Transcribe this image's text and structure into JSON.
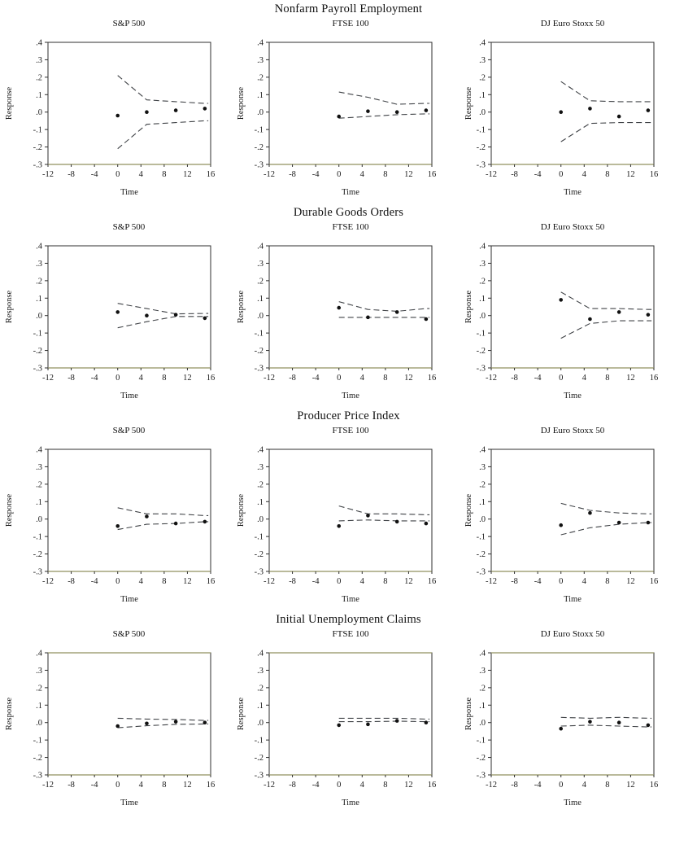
{
  "figure": {
    "background": "#ffffff"
  },
  "axes": {
    "ylabel": "Response",
    "xlabel": "Time",
    "ytick_labels": [
      ".4",
      ".3",
      ".2",
      ".1",
      ".0",
      "-.1",
      "-.2",
      "-.3"
    ],
    "ytick_values": [
      0.4,
      0.3,
      0.2,
      0.1,
      0.0,
      -0.1,
      -0.2,
      -0.3
    ],
    "xtick_labels": [
      "-12",
      "-8",
      "-4",
      "0",
      "4",
      "8",
      "12",
      "16"
    ],
    "xtick_values": [
      -12,
      -8,
      -4,
      0,
      4,
      8,
      12,
      16
    ],
    "xlim": [
      -12,
      16
    ],
    "ylim": [
      -0.3,
      0.4
    ],
    "grid": false
  },
  "colors": {
    "frame": "#2f2f2f",
    "frame_accent": "#90905f",
    "band": "#404347",
    "point": "#111111",
    "text": "#1a1a1a"
  },
  "chart_data": [
    {
      "title": "Nonfarm Payroll Employment",
      "type": "scatter",
      "x": [
        0,
        5,
        10,
        15
      ],
      "panels": [
        {
          "series_title": "S&P 500",
          "points": [
            -0.02,
            0.0,
            0.01,
            0.02
          ],
          "upper_band": [
            0.21,
            0.07,
            0.06,
            0.05
          ],
          "lower_band": [
            -0.21,
            -0.07,
            -0.06,
            -0.05
          ]
        },
        {
          "series_title": "FTSE 100",
          "points": [
            -0.025,
            0.005,
            0.0,
            0.01
          ],
          "upper_band": [
            0.115,
            0.085,
            0.045,
            0.05
          ],
          "lower_band": [
            -0.035,
            -0.025,
            -0.015,
            -0.01
          ]
        },
        {
          "series_title": "DJ Euro Stoxx 50",
          "points": [
            0.0,
            0.02,
            -0.025,
            0.01
          ],
          "upper_band": [
            0.175,
            0.065,
            0.06,
            0.06
          ],
          "lower_band": [
            -0.17,
            -0.065,
            -0.06,
            -0.06
          ]
        }
      ]
    },
    {
      "title": "Durable Goods Orders",
      "type": "scatter",
      "x": [
        0,
        5,
        10,
        15
      ],
      "panels": [
        {
          "series_title": "S&P 500",
          "points": [
            0.02,
            0.0,
            0.005,
            -0.015
          ],
          "upper_band": [
            0.07,
            0.04,
            0.01,
            0.012
          ],
          "lower_band": [
            -0.07,
            -0.035,
            -0.005,
            -0.005
          ]
        },
        {
          "series_title": "FTSE 100",
          "points": [
            0.045,
            -0.01,
            0.02,
            -0.02
          ],
          "upper_band": [
            0.08,
            0.035,
            0.025,
            0.04
          ],
          "lower_band": [
            -0.01,
            -0.01,
            -0.01,
            -0.01
          ]
        },
        {
          "series_title": "DJ Euro Stoxx 50",
          "points": [
            0.09,
            -0.02,
            0.02,
            0.005
          ],
          "upper_band": [
            0.135,
            0.04,
            0.04,
            0.035
          ],
          "lower_band": [
            -0.13,
            -0.045,
            -0.03,
            -0.03
          ]
        }
      ]
    },
    {
      "title": "Producer Price Index",
      "type": "scatter",
      "x": [
        0,
        5,
        10,
        15
      ],
      "panels": [
        {
          "series_title": "S&P 500",
          "points": [
            -0.04,
            0.015,
            -0.025,
            -0.015
          ],
          "upper_band": [
            0.065,
            0.03,
            0.03,
            0.02
          ],
          "lower_band": [
            -0.06,
            -0.03,
            -0.025,
            -0.015
          ]
        },
        {
          "series_title": "FTSE 100",
          "points": [
            -0.04,
            0.02,
            -0.015,
            -0.025
          ],
          "upper_band": [
            0.075,
            0.03,
            0.03,
            0.025
          ],
          "lower_band": [
            -0.01,
            -0.005,
            -0.01,
            -0.01
          ]
        },
        {
          "series_title": "DJ Euro Stoxx 50",
          "points": [
            -0.035,
            0.035,
            -0.02,
            -0.02
          ],
          "upper_band": [
            0.09,
            0.05,
            0.035,
            0.03
          ],
          "lower_band": [
            -0.09,
            -0.05,
            -0.03,
            -0.02
          ]
        }
      ]
    },
    {
      "title": "Initial Unemployment Claims",
      "type": "scatter",
      "x": [
        0,
        5,
        10,
        15
      ],
      "panels": [
        {
          "series_title": "S&P 500",
          "points": [
            -0.02,
            -0.005,
            0.005,
            0.0
          ],
          "upper_band": [
            0.025,
            0.02,
            0.018,
            0.012
          ],
          "lower_band": [
            -0.03,
            -0.018,
            -0.01,
            -0.008
          ]
        },
        {
          "series_title": "FTSE 100",
          "points": [
            -0.015,
            -0.01,
            0.01,
            0.0
          ],
          "upper_band": [
            0.025,
            0.025,
            0.025,
            0.02
          ],
          "lower_band": [
            0.005,
            0.005,
            0.008,
            0.005
          ]
        },
        {
          "series_title": "DJ Euro Stoxx 50",
          "points": [
            -0.035,
            0.005,
            0.0,
            -0.015
          ],
          "upper_band": [
            0.03,
            0.025,
            0.03,
            0.025
          ],
          "lower_band": [
            -0.02,
            -0.015,
            -0.02,
            -0.025
          ]
        }
      ]
    }
  ]
}
